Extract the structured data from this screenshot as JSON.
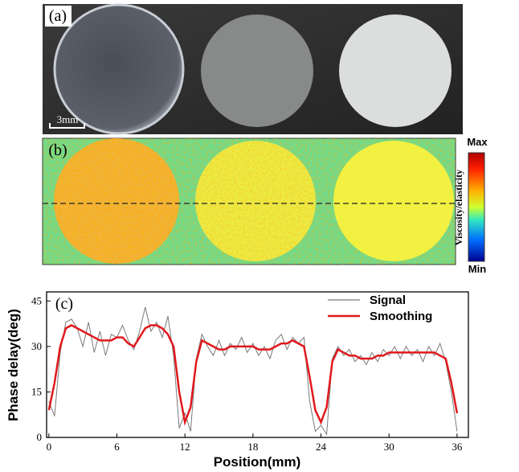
{
  "figure": {
    "panel_a": {
      "label": "(a)",
      "scale_bar": "3mm"
    },
    "panel_b": {
      "label": "(b)",
      "colorbar_title": "Viscosity/elasticity",
      "colorbar_max": "Max",
      "colorbar_min": "Min"
    }
  },
  "chart_data": {
    "type": "line",
    "panel_label": "(c)",
    "x_label": "Position(mm)",
    "y_label": "Phase delay(deg)",
    "x": [
      0,
      0.5,
      1,
      1.5,
      2,
      2.5,
      3,
      3.5,
      4,
      4.5,
      5,
      5.5,
      6,
      6.5,
      7,
      7.5,
      8,
      8.5,
      9,
      9.5,
      10,
      10.5,
      11,
      11.5,
      12,
      12.5,
      13,
      13.5,
      14,
      14.5,
      15,
      15.5,
      16,
      16.5,
      17,
      17.5,
      18,
      18.5,
      19,
      19.5,
      20,
      20.5,
      21,
      21.5,
      22,
      22.5,
      23,
      23.5,
      24,
      24.5,
      25,
      25.5,
      26,
      26.5,
      27,
      27.5,
      28,
      28.5,
      29,
      29.5,
      30,
      30.5,
      31,
      31.5,
      32,
      32.5,
      33,
      33.5,
      34,
      34.5,
      35,
      35.5,
      36
    ],
    "series": [
      {
        "name": "Signal",
        "color": "#7a7a7a",
        "values": [
          12,
          7,
          28,
          38,
          39,
          36,
          30,
          38,
          28,
          35,
          27,
          34,
          33,
          37,
          32,
          29,
          35,
          43,
          35,
          38,
          33,
          40,
          27,
          3,
          8,
          2,
          26,
          34,
          30,
          27,
          32,
          27,
          31,
          29,
          33,
          28,
          31,
          27,
          30,
          26,
          32,
          34,
          29,
          33,
          31,
          33,
          12,
          2,
          4,
          1,
          26,
          30,
          27,
          29,
          25,
          27,
          24,
          28,
          25,
          29,
          27,
          30,
          26,
          30,
          27,
          29,
          25,
          30,
          27,
          31,
          25,
          15,
          2
        ]
      },
      {
        "name": "Smoothing",
        "color": "#e0191e",
        "values": [
          9,
          18,
          30,
          36,
          37,
          36,
          35,
          34,
          33,
          32,
          32,
          32,
          33,
          33,
          31,
          30,
          33,
          36,
          37,
          37,
          36,
          34,
          30,
          15,
          5,
          10,
          25,
          32,
          31,
          30,
          29,
          29,
          30,
          30,
          30,
          30,
          30,
          29,
          29,
          29,
          30,
          31,
          31,
          32,
          31,
          30,
          20,
          9,
          5,
          10,
          25,
          29,
          28,
          27,
          27,
          26,
          26,
          26,
          27,
          27,
          28,
          28,
          28,
          28,
          28,
          28,
          28,
          28,
          28,
          27,
          26,
          18,
          8
        ]
      }
    ],
    "xlim": [
      -0.2,
      37
    ],
    "ylim": [
      0,
      48
    ],
    "xticks": [
      0,
      6,
      12,
      18,
      24,
      30,
      36
    ],
    "yticks": [
      0,
      15,
      30,
      45
    ],
    "legend": "upper right"
  }
}
